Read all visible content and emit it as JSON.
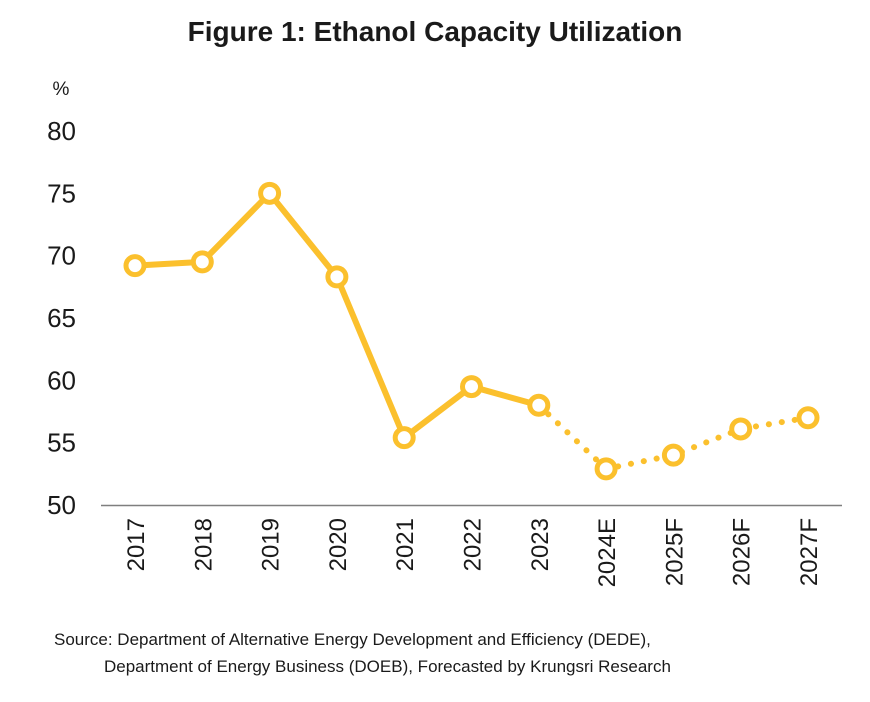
{
  "chart_data": {
    "type": "line",
    "title": "Figure 1: Ethanol Capacity Utilization",
    "ylabel": "%",
    "xlabel": "",
    "categories": [
      "2017",
      "2018",
      "2019",
      "2020",
      "2021",
      "2022",
      "2023",
      "2024E",
      "2025F",
      "2026F",
      "2027F"
    ],
    "series": [
      {
        "values": [
          69.2,
          69.5,
          75.0,
          68.3,
          55.4,
          59.5,
          58.0,
          52.9,
          54.0,
          56.1,
          57.0
        ],
        "actual_range": [
          "2017",
          "2023"
        ],
        "forecast_range": [
          "2023",
          "2027F"
        ]
      }
    ],
    "ylim": [
      50,
      80
    ],
    "yticks": [
      50,
      55,
      60,
      65,
      70,
      75,
      80
    ],
    "grid": false,
    "legend": "none",
    "colors": {
      "line": "#FBC02D",
      "marker_fill": "#ffffff",
      "axis": "#7f7f7f"
    }
  },
  "source": {
    "line1": "Source: Department of Alternative Energy Development and Efficiency (DEDE),",
    "line2": "Department of Energy Business (DOEB), Forecasted by Krungsri Research"
  }
}
